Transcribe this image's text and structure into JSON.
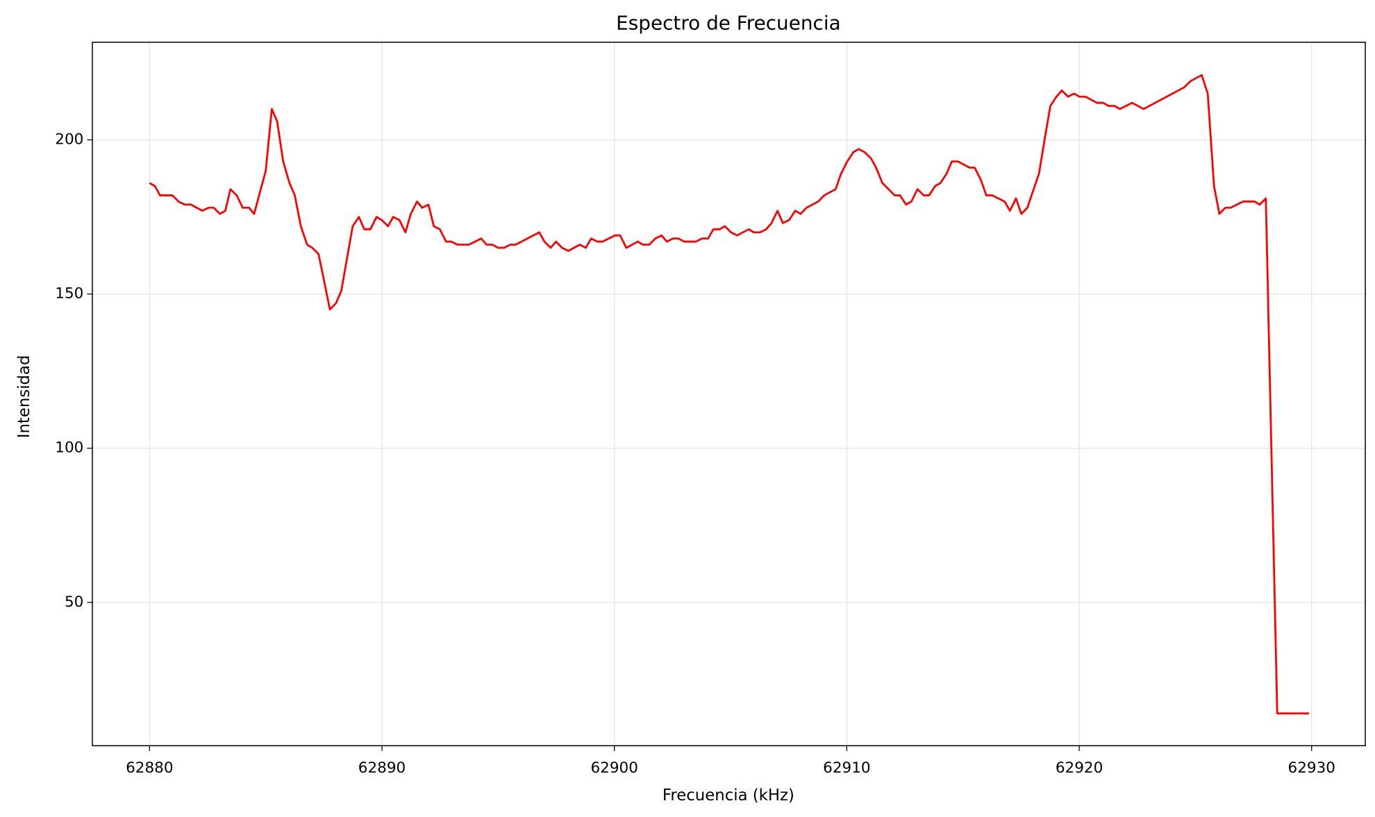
{
  "chart_data": {
    "type": "line",
    "title": "Espectro de Frecuencia",
    "x_label": "Frecuencia (kHz)",
    "y_label": "Intensidad",
    "x": [
      62880,
      62880.23,
      62880.45,
      62880.98,
      62881.25,
      62881.51,
      62881.78,
      62882.27,
      62882.54,
      62882.76,
      62883.03,
      62883.26,
      62883.48,
      62883.75,
      62884.01,
      62884.28,
      62884.5,
      62885.0,
      62885.26,
      62885.49,
      62885.75,
      62886.02,
      62886.25,
      62886.51,
      62886.78,
      62887.0,
      62887.27,
      62887.49,
      62887.76,
      62888.02,
      62888.25,
      62888.74,
      62889.01,
      62889.24,
      62889.5,
      62889.77,
      62889.99,
      62890.26,
      62890.48,
      62890.75,
      62891.01,
      62891.24,
      62891.51,
      62891.73,
      62892.0,
      62892.23,
      62892.49,
      62892.76,
      62892.98,
      62893.25,
      62893.74,
      62894.27,
      62894.5,
      62894.76,
      62894.99,
      62895.25,
      62895.52,
      62895.75,
      62896.77,
      62896.99,
      62897.26,
      62897.49,
      62897.75,
      62898.02,
      62898.51,
      62898.77,
      62899.0,
      62899.27,
      62899.49,
      62900.02,
      62900.25,
      62900.51,
      62901.01,
      62901.23,
      62901.5,
      62901.76,
      62902.03,
      62902.26,
      62902.52,
      62902.75,
      62903.01,
      62903.5,
      62903.77,
      62904.03,
      62904.26,
      62904.53,
      62904.75,
      62905.02,
      62905.28,
      62905.78,
      62906.0,
      62906.27,
      62906.53,
      62906.76,
      62907.02,
      62907.25,
      62907.52,
      62907.78,
      62908.01,
      62908.27,
      62908.77,
      62909.03,
      62909.52,
      62909.75,
      62910.02,
      62910.28,
      62910.51,
      62910.77,
      62911.04,
      62911.26,
      62911.53,
      62912.06,
      62912.29,
      62912.55,
      62912.78,
      62913.04,
      62913.31,
      62913.54,
      62913.8,
      62914.03,
      62914.29,
      62914.52,
      62914.78,
      62915.28,
      62915.5,
      62915.77,
      62916.0,
      62916.26,
      62916.79,
      62917.02,
      62917.28,
      62917.51,
      62917.77,
      62918.04,
      62918.27,
      62918.53,
      62918.76,
      62919.02,
      62919.25,
      62919.52,
      62919.78,
      62920.01,
      62920.27,
      62920.76,
      62921.03,
      62921.26,
      62921.52,
      62921.75,
      62922.28,
      62922.77,
      62924.51,
      62924.78,
      62925.27,
      62925.53,
      62925.8,
      62926.03,
      62926.29,
      62926.52,
      62927.05,
      62927.54,
      62927.77,
      62928.03,
      62928.52,
      62929.89
    ],
    "series": [
      {
        "name": "Intensidad",
        "color": "#ff0000",
        "values": [
          186,
          185,
          182,
          182,
          180,
          179,
          179,
          177,
          178,
          178,
          176,
          177,
          184,
          182,
          178,
          178,
          176,
          190,
          210,
          206,
          193,
          186,
          182,
          172,
          166,
          165,
          163,
          155,
          145,
          147,
          151,
          172,
          175,
          171,
          171,
          175,
          174,
          172,
          175,
          174,
          170,
          176,
          180,
          178,
          179,
          172,
          171,
          167,
          167,
          166,
          166,
          168,
          166,
          166,
          165,
          165,
          166,
          166,
          170,
          167,
          165,
          167,
          165,
          164,
          166,
          165,
          168,
          167,
          167,
          169,
          169,
          165,
          167,
          166,
          166,
          168,
          169,
          167,
          168,
          168,
          167,
          167,
          168,
          168,
          171,
          171,
          172,
          170,
          169,
          171,
          170,
          170,
          171,
          173,
          177,
          173,
          174,
          177,
          176,
          178,
          180,
          182,
          184,
          189,
          193,
          196,
          197,
          196,
          194,
          191,
          186,
          182,
          182,
          179,
          180,
          184,
          182,
          182,
          185,
          186,
          189,
          193,
          193,
          191,
          191,
          187,
          182,
          182,
          180,
          177,
          181,
          176,
          178,
          184,
          189,
          201,
          211,
          214,
          216,
          214,
          215,
          214,
          214,
          212,
          212,
          211,
          211,
          210,
          212,
          210,
          217,
          219,
          221,
          215,
          185,
          176,
          178,
          178,
          180,
          180,
          179,
          181,
          14,
          14
        ]
      }
    ],
    "xlim": [
      62877.54,
      62932.31
    ],
    "ylim": [
      3.52,
      231.65
    ],
    "xticks": [
      62880,
      62890,
      62900,
      62910,
      62920,
      62930
    ],
    "yticks": [
      50,
      100,
      150,
      200
    ],
    "grid": true
  }
}
